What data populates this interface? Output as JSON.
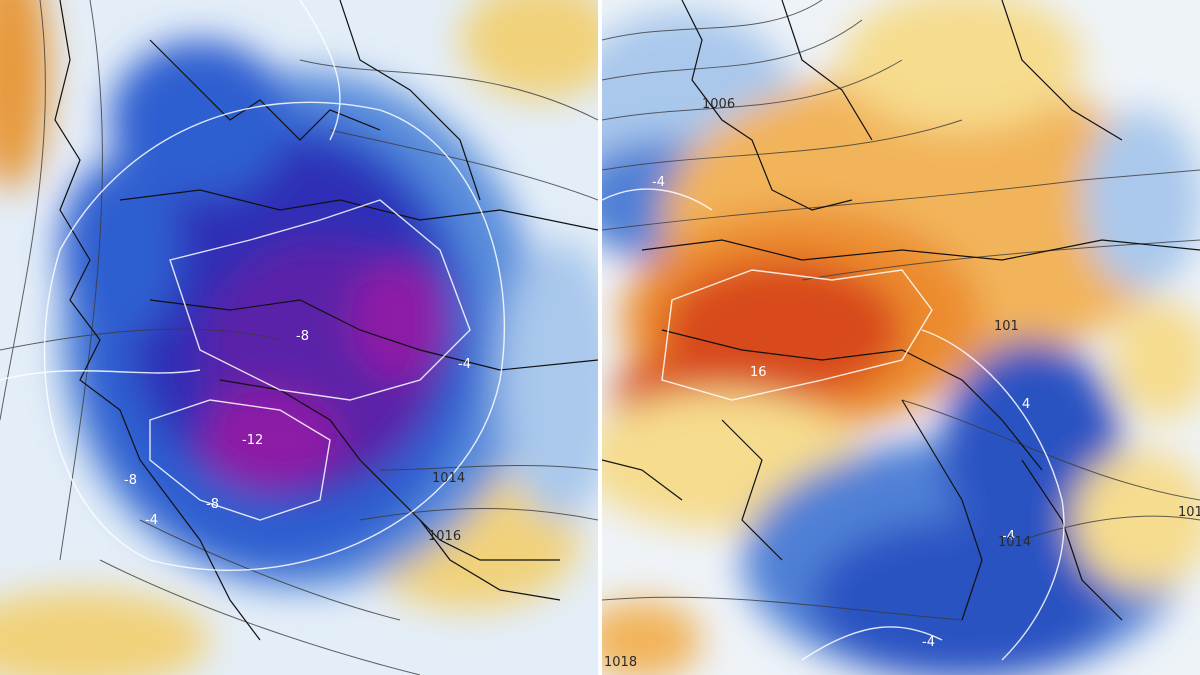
{
  "maps": {
    "left": {
      "colors": {
        "deep_purple": "#8d1ea6",
        "purple": "#5a22a8",
        "indigo": "#2d2fb6",
        "blue": "#2f5fd0",
        "mid_blue": "#5b8fdc",
        "light_blue": "#a9c8ec",
        "pale": "#e4eef8",
        "yellow": "#f1d27a",
        "orange": "#e79a3c"
      },
      "isotherm_labels": [
        "-8",
        "-12",
        "-8",
        "-8",
        "-4",
        "-4"
      ],
      "isobar_labels": [
        "1014",
        "1016"
      ]
    },
    "right": {
      "colors": {
        "red": "#d84a1e",
        "orange": "#ec8c2e",
        "light_orange": "#f2b45a",
        "yellow": "#f6dc8e",
        "pale": "#eef3f8",
        "light_blue": "#a9c8ec",
        "mid_blue": "#4f80d6",
        "blue": "#2c52c2"
      },
      "isotherm_labels": [
        "4",
        "16",
        "-4",
        "-4",
        "-4"
      ],
      "isobar_labels": [
        "1006",
        "1014",
        "1018",
        "101",
        "101"
      ]
    }
  }
}
